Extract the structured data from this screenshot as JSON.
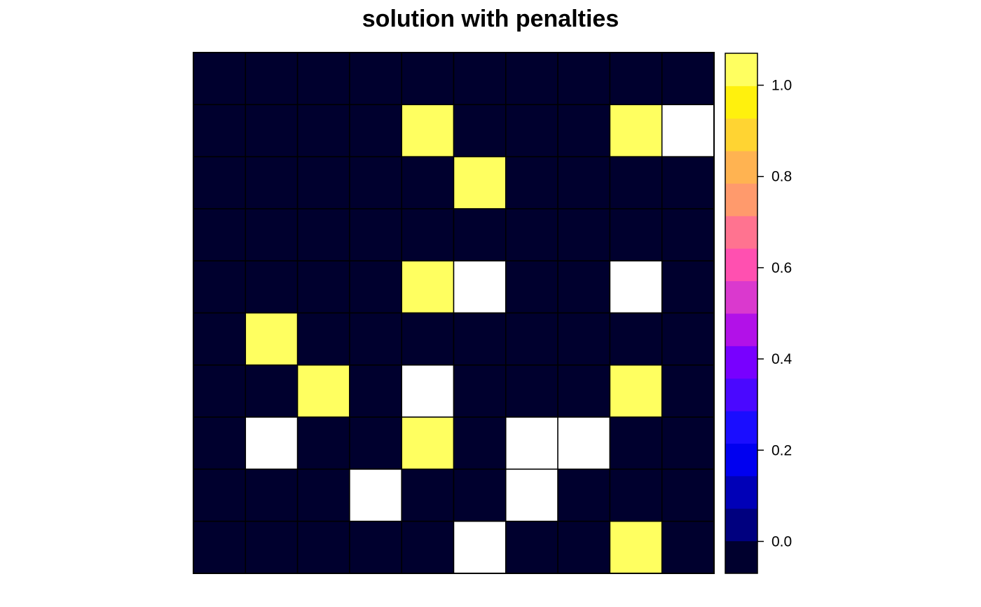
{
  "chart_data": {
    "type": "heatmap",
    "title": "solution with penalties",
    "rows": 10,
    "cols": 10,
    "missing_color": "#FFFFFF",
    "values": [
      [
        0,
        0,
        0,
        0,
        0,
        0,
        0,
        0,
        0,
        0
      ],
      [
        0,
        0,
        0,
        0,
        1,
        0,
        0,
        0,
        1,
        null
      ],
      [
        0,
        0,
        0,
        0,
        0,
        1,
        0,
        0,
        0,
        0
      ],
      [
        0,
        0,
        0,
        0,
        0,
        0,
        0,
        0,
        0,
        0
      ],
      [
        0,
        0,
        0,
        0,
        1,
        null,
        0,
        0,
        null,
        0
      ],
      [
        0,
        1,
        0,
        0,
        0,
        0,
        0,
        0,
        0,
        0
      ],
      [
        0,
        0,
        1,
        0,
        null,
        0,
        0,
        0,
        1,
        0
      ],
      [
        0,
        null,
        0,
        0,
        1,
        0,
        null,
        null,
        0,
        0
      ],
      [
        0,
        0,
        0,
        null,
        0,
        0,
        null,
        0,
        0,
        0
      ],
      [
        0,
        0,
        0,
        0,
        0,
        null,
        0,
        0,
        1,
        0
      ]
    ],
    "colorbar": {
      "range": [
        -0.07,
        1.07
      ],
      "ticks": [
        0.0,
        0.2,
        0.4,
        0.6,
        0.8,
        1.0
      ],
      "tick_labels": [
        "0.0",
        "0.2",
        "0.4",
        "0.6",
        "0.8",
        "1.0"
      ],
      "colors": [
        "#00002E",
        "#00007F",
        "#0000B7",
        "#0000F0",
        "#1A0DFF",
        "#4A08FF",
        "#7800FF",
        "#B211E8",
        "#DA39CE",
        "#FF50B0",
        "#FF7390",
        "#FF9A6C",
        "#FFB351",
        "#FFD432",
        "#FFF10D",
        "#FFFF60"
      ]
    }
  }
}
